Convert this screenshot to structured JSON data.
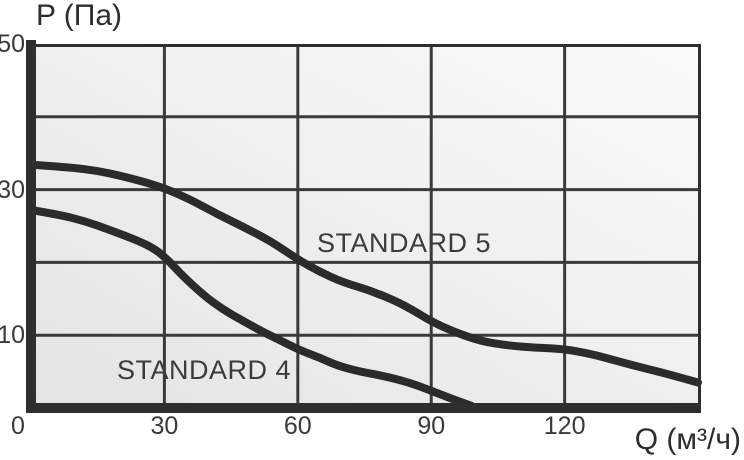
{
  "chart_data": {
    "type": "line",
    "title": "",
    "ylabel": "P (Па)",
    "xlabel": "Q (м³/ч)",
    "xlim": [
      0,
      150.5
    ],
    "ylim": [
      0,
      50
    ],
    "grid": true,
    "x_gridlines": [
      30,
      60,
      90,
      120
    ],
    "y_gridlines": [
      10,
      20,
      30,
      40
    ],
    "x_ticks": [
      {
        "label": "0",
        "value": 0
      },
      {
        "label": "30",
        "value": 30
      },
      {
        "label": "60",
        "value": 60
      },
      {
        "label": "90",
        "value": 90
      },
      {
        "label": "120",
        "value": 120
      }
    ],
    "y_ticks": [
      {
        "label": "50",
        "value": 50
      },
      {
        "label": "30",
        "value": 30
      },
      {
        "label": "10",
        "value": 10
      }
    ],
    "series": [
      {
        "name": "STANDARD 5",
        "points": [
          [
            0,
            33.4
          ],
          [
            8,
            33.1
          ],
          [
            16,
            32.5
          ],
          [
            24,
            31.3
          ],
          [
            30,
            30.2
          ],
          [
            36,
            28.6
          ],
          [
            42,
            26.6
          ],
          [
            48,
            24.8
          ],
          [
            54,
            22.9
          ],
          [
            60,
            20.4
          ],
          [
            65,
            18.7
          ],
          [
            70,
            17.3
          ],
          [
            76,
            16.2
          ],
          [
            82,
            14.7
          ],
          [
            86,
            13.4
          ],
          [
            90,
            11.9
          ],
          [
            95,
            10.5
          ],
          [
            101,
            9.2
          ],
          [
            107,
            8.6
          ],
          [
            113,
            8.3
          ],
          [
            120,
            8.1
          ],
          [
            126,
            7.4
          ],
          [
            131,
            6.6
          ],
          [
            137,
            5.6
          ],
          [
            143,
            4.7
          ],
          [
            150,
            3.5
          ]
        ]
      },
      {
        "name": "STANDARD 4",
        "points": [
          [
            0,
            27.2
          ],
          [
            6,
            26.6
          ],
          [
            12,
            25.7
          ],
          [
            18,
            24.4
          ],
          [
            24,
            23.0
          ],
          [
            28,
            21.8
          ],
          [
            31,
            20.2
          ],
          [
            34,
            18.2
          ],
          [
            39,
            15.4
          ],
          [
            43,
            13.6
          ],
          [
            47,
            12.2
          ],
          [
            52,
            10.5
          ],
          [
            56,
            9.3
          ],
          [
            61,
            7.8
          ],
          [
            65,
            6.9
          ],
          [
            69,
            5.8
          ],
          [
            74,
            5.0
          ],
          [
            80,
            4.3
          ],
          [
            85,
            3.5
          ],
          [
            89,
            2.6
          ],
          [
            94,
            1.4
          ],
          [
            99,
            0.3
          ]
        ]
      }
    ],
    "colors": {
      "curve": "#2b2b2b",
      "axis_bar": "#2e2e2e",
      "grid_line": "#3a3a3a",
      "plot_border": "#2e2e2e",
      "text": "#3a3a3a",
      "plot_bg_dark": "#e4e4e4",
      "plot_bg_light": "#fafafa",
      "page_bg": "#ffffff"
    }
  }
}
